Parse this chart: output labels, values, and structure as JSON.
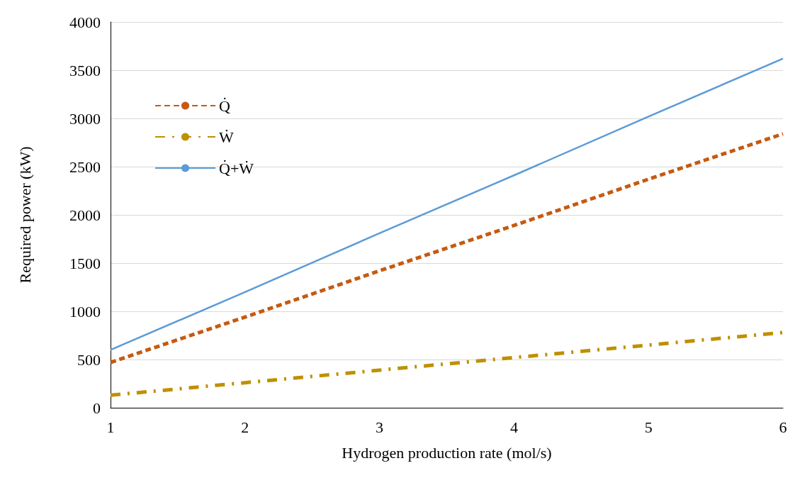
{
  "chart_data": {
    "type": "line",
    "xlabel": "Hydrogen production rate (mol/s)",
    "ylabel": "Required power (kW)",
    "x": [
      1,
      2,
      3,
      4,
      5,
      6
    ],
    "series": [
      {
        "name": "Q̇",
        "color": "#c55a11",
        "line_style": "dashed",
        "values": [
          470,
          940,
          1420,
          1890,
          2370,
          2840
        ]
      },
      {
        "name": "Ẇ",
        "color": "#bf9000",
        "line_style": "dashdot",
        "values": [
          130,
          260,
          390,
          520,
          650,
          780
        ]
      },
      {
        "name": "Q̇+Ẇ",
        "color": "#5b9bd5",
        "line_style": "solid",
        "values": [
          600,
          1200,
          1810,
          2410,
          3020,
          3620
        ]
      }
    ],
    "xlim": [
      1,
      6
    ],
    "xticks": [
      1,
      2,
      3,
      4,
      5,
      6
    ],
    "ylim": [
      0,
      4000
    ],
    "yticks": [
      0,
      500,
      1000,
      1500,
      2000,
      2500,
      3000,
      3500,
      4000
    ],
    "grid": "y",
    "legend": "top left",
    "marker": "none"
  }
}
